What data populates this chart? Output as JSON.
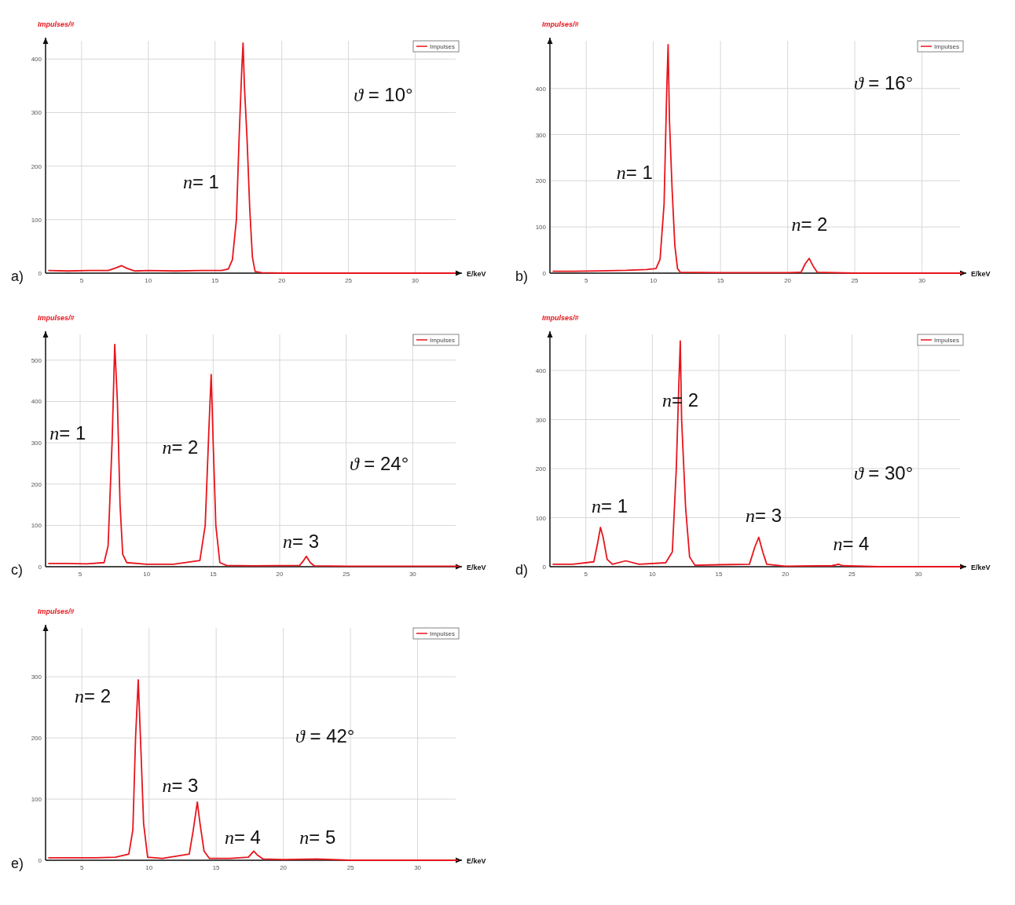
{
  "chart_data": [
    {
      "type": "line",
      "title": "a)",
      "xlabel": "E/keV",
      "ylabel": "Impulses/#",
      "xlim": [
        2.3,
        33.5
      ],
      "ylim": [
        0,
        440
      ],
      "xticks": [
        5,
        10,
        15,
        20,
        25,
        30
      ],
      "yticks": [
        0,
        100,
        200,
        300,
        400
      ],
      "grid": true,
      "legend": "top right",
      "series": [
        {
          "name": "Impulses",
          "color": "#e8141c",
          "x": [
            2.5,
            4,
            5.5,
            7,
            7.6,
            8,
            8.4,
            9,
            10,
            12,
            14,
            15.5,
            16,
            16.3,
            16.6,
            16.8,
            17.0,
            17.1,
            17.2,
            17.4,
            17.6,
            17.8,
            18.0,
            18.5,
            20,
            25,
            30,
            33
          ],
          "values": [
            5,
            4,
            5,
            5,
            10,
            14,
            9,
            4,
            5,
            4,
            5,
            5,
            8,
            25,
            100,
            250,
            380,
            430,
            350,
            250,
            120,
            30,
            3,
            1,
            0,
            0,
            0,
            0
          ]
        }
      ],
      "annotations": [
        "n= 1",
        "ϑ = 10°"
      ]
    },
    {
      "type": "line",
      "title": "b)",
      "xlabel": "E/keV",
      "ylabel": "Impulses/#",
      "xlim": [
        2.3,
        33.3
      ],
      "ylim": [
        0,
        510
      ],
      "xticks": [
        5,
        10,
        15,
        20,
        25,
        30
      ],
      "yticks": [
        0,
        100,
        200,
        300,
        400
      ],
      "grid": true,
      "legend": "top right",
      "series": [
        {
          "name": "Impulses",
          "color": "#e8141c",
          "x": [
            2.5,
            4,
            6,
            8,
            9.5,
            10.2,
            10.5,
            10.8,
            11.0,
            11.1,
            11.2,
            11.4,
            11.6,
            11.8,
            12.0,
            15,
            20,
            21.0,
            21.3,
            21.6,
            21.9,
            22.2,
            25,
            30,
            33
          ],
          "values": [
            4,
            4,
            5,
            6,
            8,
            10,
            30,
            150,
            400,
            495,
            330,
            180,
            60,
            10,
            2,
            1,
            1,
            2,
            20,
            32,
            15,
            2,
            0,
            0,
            0
          ]
        }
      ],
      "annotations": [
        "n= 1",
        "n= 2",
        "ϑ = 16°"
      ]
    },
    {
      "type": "line",
      "title": "c)",
      "xlabel": "E/keV",
      "ylabel": "Impulses/#",
      "xlim": [
        2.4,
        33.7
      ],
      "ylim": [
        0,
        570
      ],
      "xticks": [
        5,
        10,
        15,
        20,
        25,
        30
      ],
      "yticks": [
        0,
        100,
        200,
        300,
        400,
        500
      ],
      "grid": true,
      "legend": "top right",
      "series": [
        {
          "name": "Impulses",
          "color": "#e8141c",
          "x": [
            2.6,
            4,
            5.5,
            6.8,
            7.1,
            7.4,
            7.6,
            7.8,
            8.0,
            8.2,
            8.5,
            10,
            12,
            14.0,
            14.4,
            14.7,
            14.85,
            15.0,
            15.2,
            15.5,
            16,
            18,
            21.5,
            21.8,
            22.0,
            22.3,
            22.6,
            25,
            30,
            33.5
          ],
          "values": [
            8,
            8,
            7,
            10,
            50,
            300,
            538,
            400,
            150,
            30,
            10,
            6,
            6,
            15,
            100,
            350,
            465,
            300,
            100,
            10,
            3,
            2,
            3,
            15,
            25,
            10,
            2,
            1,
            1,
            1
          ]
        }
      ],
      "annotations": [
        "n= 1",
        "n= 2",
        "n= 3",
        "ϑ = 24°"
      ]
    },
    {
      "type": "line",
      "title": "d)",
      "xlabel": "E/keV",
      "ylabel": "Impulses/#",
      "xlim": [
        2.3,
        33.6
      ],
      "ylim": [
        0,
        480
      ],
      "xticks": [
        5,
        10,
        15,
        20,
        25,
        30
      ],
      "yticks": [
        0,
        100,
        200,
        300,
        400
      ],
      "grid": true,
      "legend": "top right",
      "series": [
        {
          "name": "Impulses",
          "color": "#e8141c",
          "x": [
            2.5,
            4,
            5.6,
            5.9,
            6.1,
            6.3,
            6.6,
            7,
            8,
            9,
            11,
            11.5,
            11.8,
            12.0,
            12.1,
            12.2,
            12.5,
            12.8,
            13.2,
            15,
            17.3,
            17.7,
            18.0,
            18.3,
            18.6,
            20,
            23.5,
            24,
            24.3,
            27,
            33.2
          ],
          "values": [
            5,
            5,
            10,
            50,
            80,
            60,
            15,
            5,
            12,
            5,
            8,
            30,
            200,
            380,
            460,
            300,
            120,
            20,
            3,
            4,
            5,
            40,
            60,
            30,
            5,
            1,
            2,
            5,
            2,
            0,
            0
          ]
        }
      ],
      "annotations": [
        "n= 1",
        "n= 2",
        "n= 3",
        "n= 4",
        "ϑ = 30°"
      ]
    },
    {
      "type": "line",
      "title": "e)",
      "xlabel": "E/keV",
      "ylabel": "Impulses/#",
      "xlim": [
        2.3,
        33.3
      ],
      "ylim": [
        0,
        385
      ],
      "xticks": [
        5,
        10,
        15,
        20,
        25,
        30
      ],
      "yticks": [
        0,
        100,
        200,
        300
      ],
      "grid": true,
      "legend": "top right",
      "series": [
        {
          "name": "Impulses",
          "color": "#e8141c",
          "x": [
            2.5,
            4,
            6,
            7.5,
            8.5,
            8.8,
            9.0,
            9.2,
            9.4,
            9.6,
            9.9,
            11,
            13.0,
            13.3,
            13.6,
            13.8,
            14.1,
            14.5,
            16,
            17.4,
            17.8,
            18.1,
            18.5,
            20,
            22.5,
            25,
            30,
            33
          ],
          "values": [
            4,
            4,
            4,
            5,
            10,
            50,
            200,
            295,
            180,
            60,
            5,
            3,
            10,
            50,
            95,
            60,
            15,
            3,
            3,
            5,
            15,
            8,
            2,
            1,
            2,
            0,
            0,
            0
          ]
        }
      ],
      "annotations": [
        "n= 2",
        "n= 3",
        "n= 4",
        "n= 5",
        "ϑ = 42°"
      ]
    }
  ]
}
